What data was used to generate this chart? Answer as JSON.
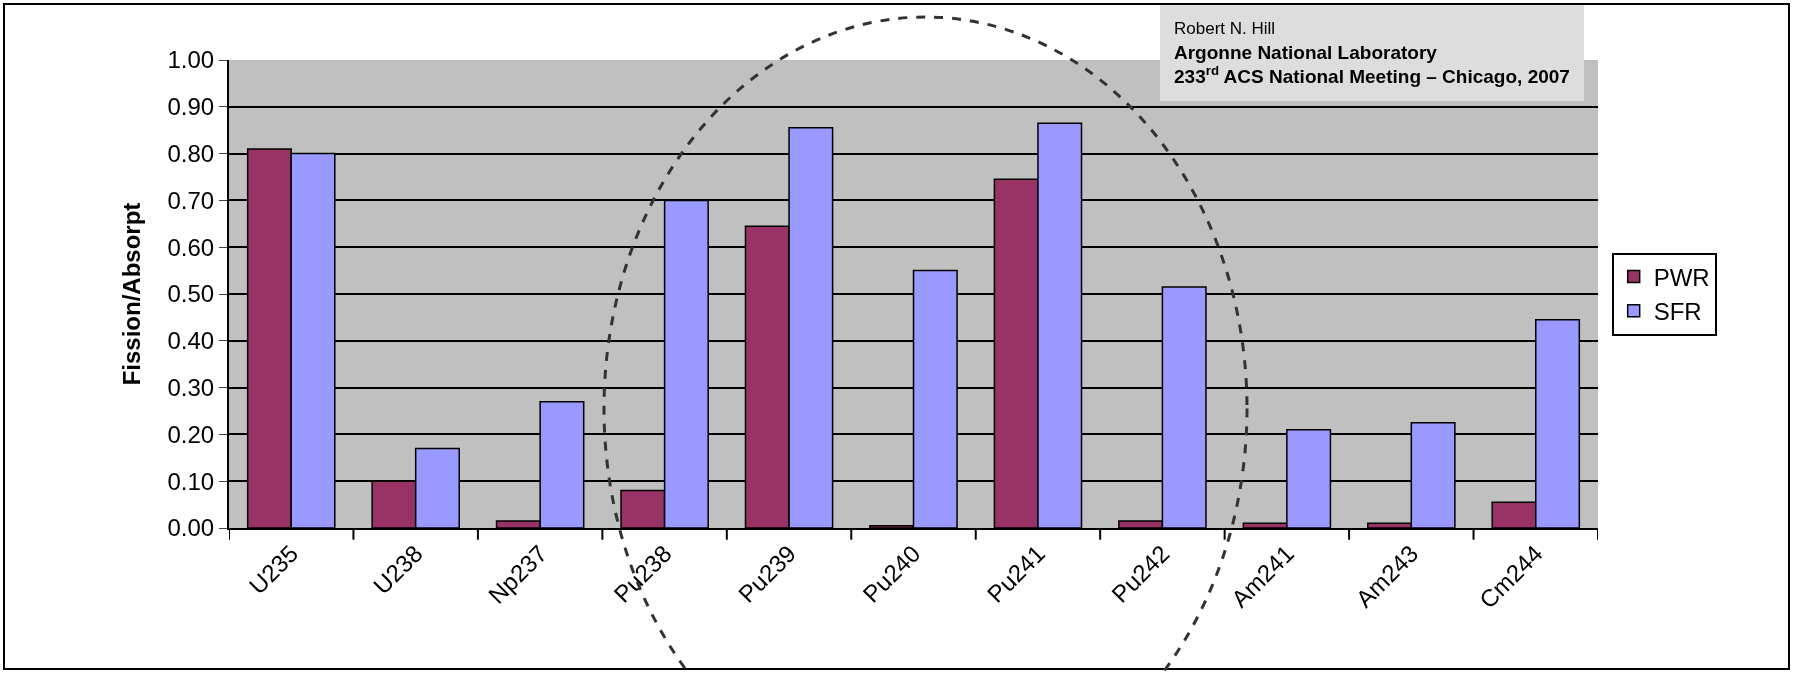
{
  "chart_data": {
    "type": "bar",
    "ylabel": "Fission/Absorpt",
    "categories": [
      "U235",
      "U238",
      "Np237",
      "Pu238",
      "Pu239",
      "Pu240",
      "Pu241",
      "Pu242",
      "Am241",
      "Am243",
      "Cm244"
    ],
    "series": [
      {
        "name": "PWR",
        "color": "#993366",
        "values": [
          0.81,
          0.1,
          0.015,
          0.08,
          0.645,
          0.005,
          0.745,
          0.015,
          0.01,
          0.01,
          0.055
        ]
      },
      {
        "name": "SFR",
        "color": "#9999ff",
        "values": [
          0.8,
          0.17,
          0.27,
          0.7,
          0.855,
          0.55,
          0.865,
          0.515,
          0.21,
          0.225,
          0.445
        ]
      }
    ],
    "ylim": [
      0,
      1
    ],
    "yticks": [
      {
        "value": 0,
        "label": "0.00"
      },
      {
        "value": 0.1,
        "label": "0.10"
      },
      {
        "value": 0.2,
        "label": "0.20"
      },
      {
        "value": 0.3,
        "label": "0.30"
      },
      {
        "value": 0.4,
        "label": "0.40"
      },
      {
        "value": 0.5,
        "label": "0.50"
      },
      {
        "value": 0.6,
        "label": "0.60"
      },
      {
        "value": 0.7,
        "label": "0.70"
      },
      {
        "value": 0.8,
        "label": "0.80"
      },
      {
        "value": 0.9,
        "label": "0.90"
      },
      {
        "value": 1,
        "label": "1.00"
      }
    ],
    "grid": "y",
    "legend": "right",
    "annotations": [
      "Robert N. Hill",
      "Argonne National Laboratory",
      "233$^{rd}$ ACS National Meeting – Chicago, 2007"
    ]
  }
}
